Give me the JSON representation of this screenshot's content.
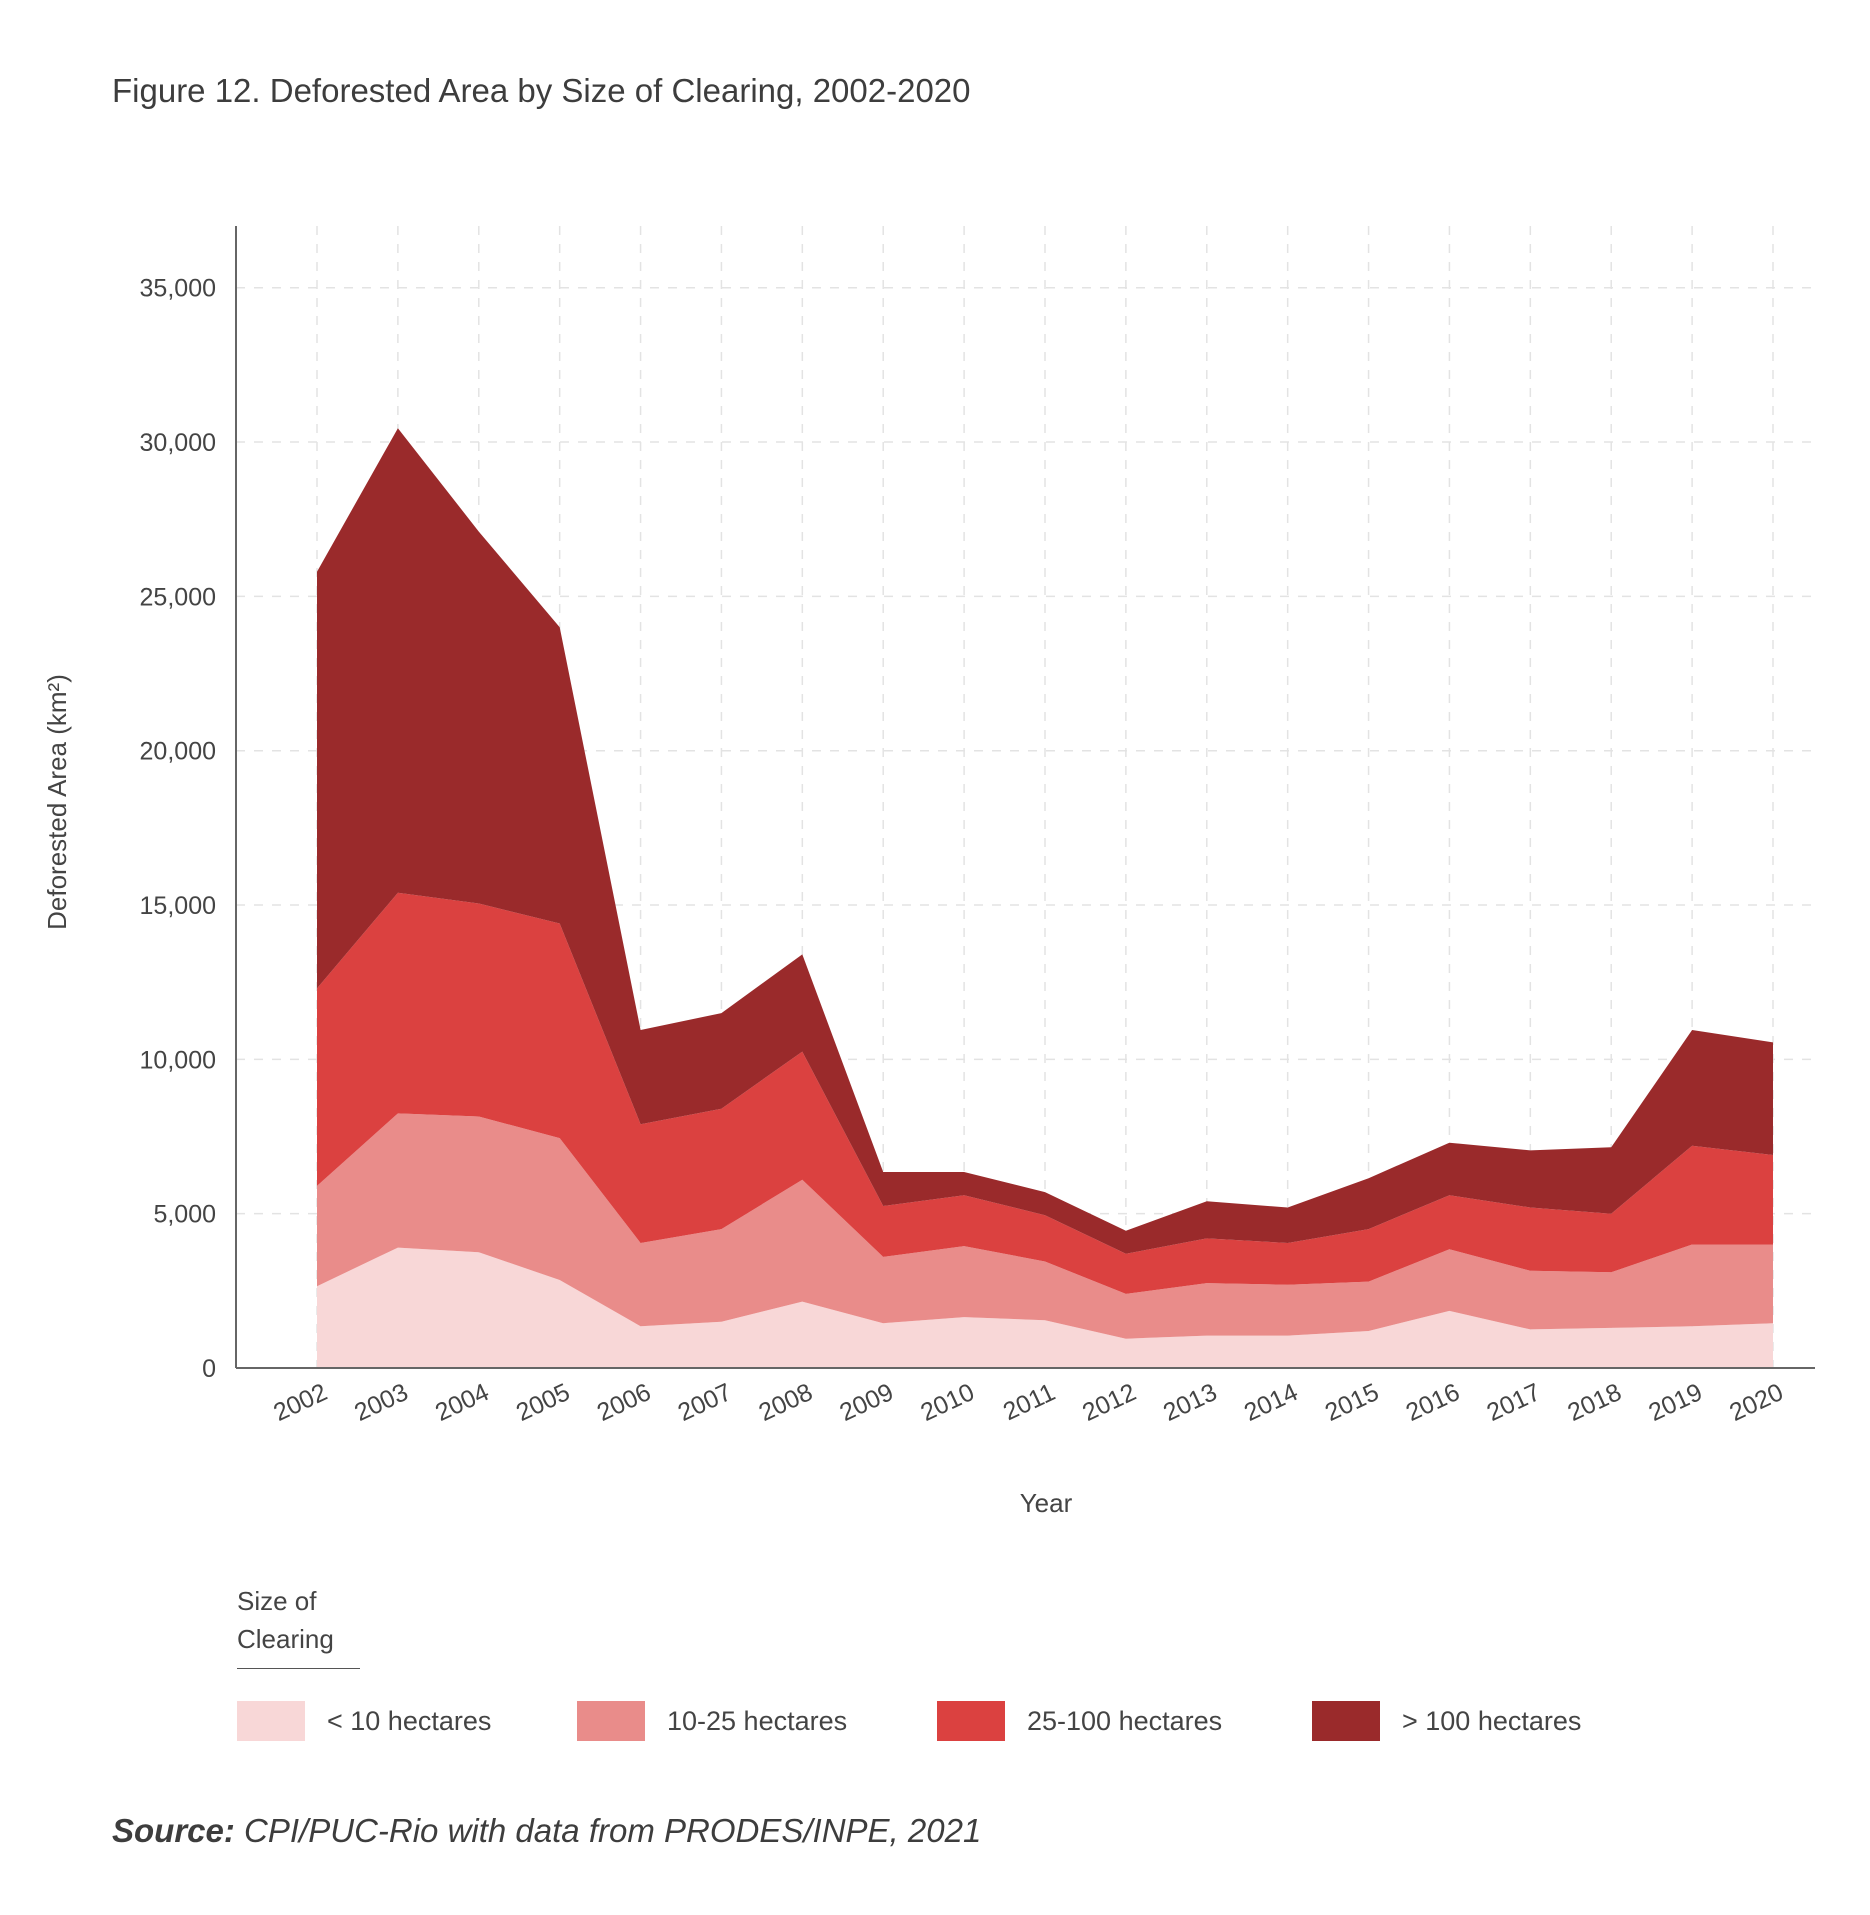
{
  "title": "Figure 12. Deforested Area by Size of Clearing, 2002-2020",
  "source": {
    "label": "Source:",
    "text": "CPI/PUC-Rio with data from PRODES/INPE, 2021"
  },
  "legend": {
    "title": "Size of Clearing",
    "items": [
      {
        "label": "< 10 hectares",
        "color": "#f8d7d7"
      },
      {
        "label": "10-25 hectares",
        "color": "#e98c8a"
      },
      {
        "label": "25-100 hectares",
        "color": "#db4140"
      },
      {
        "label": "> 100 hectares",
        "color": "#9a2a2b"
      }
    ]
  },
  "chart_data": {
    "type": "area",
    "stacked": true,
    "xlabel": "Year",
    "ylabel": "Deforested Area (km²)",
    "ylim": [
      0,
      37000
    ],
    "yticks": [
      0,
      5000,
      10000,
      15000,
      20000,
      25000,
      30000,
      35000
    ],
    "ytick_labels": [
      "0",
      "5,000",
      "10,000",
      "15,000",
      "20,000",
      "25,000",
      "30,000",
      "35,000"
    ],
    "grid": true,
    "x": [
      "2002",
      "2003",
      "2004",
      "2005",
      "2006",
      "2007",
      "2008",
      "2009",
      "2010",
      "2011",
      "2012",
      "2013",
      "2014",
      "2015",
      "2016",
      "2017",
      "2018",
      "2019",
      "2020"
    ],
    "series": [
      {
        "name": "< 10 hectares",
        "color": "#f8d7d7",
        "values": [
          2650,
          3900,
          3750,
          2850,
          1350,
          1500,
          2150,
          1450,
          1650,
          1550,
          950,
          1050,
          1050,
          1200,
          1850,
          1250,
          1300,
          1350,
          1450
        ]
      },
      {
        "name": "10-25 hectares",
        "color": "#e98c8a",
        "values": [
          3250,
          4350,
          4400,
          4600,
          2700,
          3000,
          3950,
          2150,
          2300,
          1900,
          1450,
          1700,
          1650,
          1600,
          2000,
          1900,
          1800,
          2650,
          2550
        ]
      },
      {
        "name": "25-100 hectares",
        "color": "#db4140",
        "values": [
          6400,
          7150,
          6900,
          6950,
          3850,
          3900,
          4150,
          1650,
          1650,
          1500,
          1300,
          1450,
          1350,
          1700,
          1750,
          2050,
          1900,
          3200,
          2900
        ]
      },
      {
        "name": "> 100 hectares",
        "color": "#9a2a2b",
        "values": [
          13500,
          15050,
          12050,
          9600,
          3050,
          3100,
          3150,
          1100,
          750,
          750,
          750,
          1200,
          1150,
          1650,
          1700,
          1850,
          2150,
          3750,
          3650
        ]
      }
    ]
  }
}
